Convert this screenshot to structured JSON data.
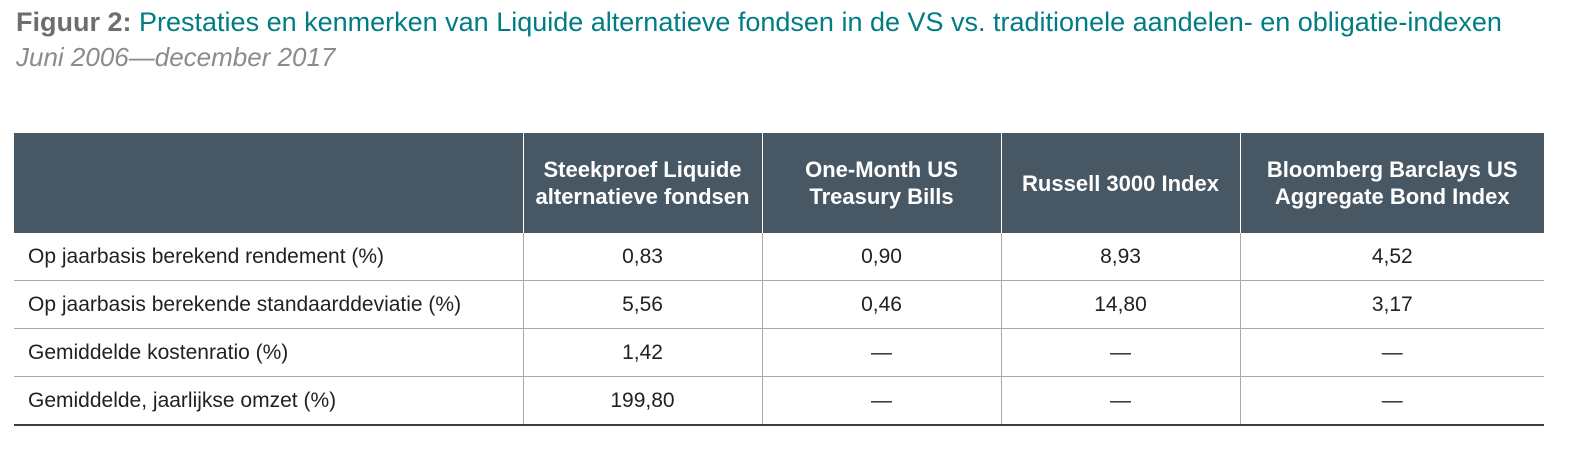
{
  "title": {
    "prefix": "Figuur 2:",
    "text": "Prestaties en kenmerken van Liquide alternatieve fondsen in de VS vs. traditionele aandelen- en obligatie-indexen",
    "subtitle": "Juni 2006—december 2017"
  },
  "table": {
    "headers": [
      "",
      "Steekproef Liquide alternatieve fondsen",
      "One-Month US Treasury Bills",
      "Russell 3000 Index",
      "Bloomberg Barclays US Aggregate Bond Index"
    ],
    "rows": [
      [
        "Op jaarbasis berekend rendement (%)",
        "0,83",
        "0,90",
        "8,93",
        "4,52"
      ],
      [
        "Op jaarbasis berekende standaarddeviatie (%)",
        "5,56",
        "0,46",
        "14,80",
        "3,17"
      ],
      [
        "Gemiddelde kostenratio (%)",
        "1,42",
        "—",
        "—",
        "—"
      ],
      [
        "Gemiddelde, jaarlijkse omzet (%)",
        "199,80",
        "—",
        "—",
        "—"
      ]
    ]
  },
  "colors": {
    "header_bg": "#475864",
    "title_accent": "#007d84",
    "title_prefix": "#6d6e71",
    "subtitle": "#8a8b8d"
  }
}
